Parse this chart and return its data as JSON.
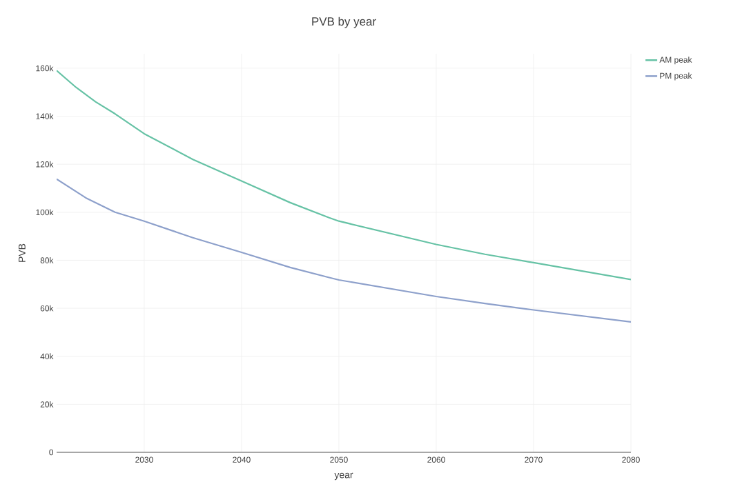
{
  "chart_data": {
    "type": "line",
    "title": "PVB by year",
    "xlabel": "year",
    "ylabel": "PVB",
    "series": [
      {
        "name": "AM peak",
        "color": "#66c2a5",
        "x": [
          2021,
          2023,
          2025,
          2027,
          2030,
          2035,
          2040,
          2045,
          2049,
          2050,
          2060,
          2065,
          2070,
          2080
        ],
        "values": [
          159000,
          152000,
          146000,
          141000,
          132700,
          122000,
          113000,
          104000,
          97700,
          96300,
          86600,
          82500,
          79000,
          72000
        ]
      },
      {
        "name": "PM peak",
        "color": "#8da0cb",
        "x": [
          2021,
          2024,
          2027,
          2030,
          2035,
          2040,
          2045,
          2049,
          2050,
          2060,
          2065,
          2070,
          2080
        ],
        "values": [
          113800,
          106000,
          100000,
          96300,
          89400,
          83300,
          77000,
          72800,
          71800,
          64900,
          62000,
          59300,
          54300
        ]
      }
    ],
    "xlim": [
      2021,
      2080
    ],
    "ylim": [
      0,
      166000
    ],
    "xticks": [
      2030,
      2040,
      2050,
      2060,
      2070,
      2080
    ],
    "yticks": [
      0,
      {
        "value": 20000,
        "label": "20k"
      },
      {
        "value": 40000,
        "label": "40k"
      },
      {
        "value": 60000,
        "label": "60k"
      },
      {
        "value": 80000,
        "label": "80k"
      },
      {
        "value": 100000,
        "label": "100k"
      },
      {
        "value": 120000,
        "label": "120k"
      },
      {
        "value": 140000,
        "label": "140k"
      },
      {
        "value": 160000,
        "label": "160k"
      }
    ],
    "grid": true,
    "legend": "top right",
    "marker": "none",
    "line_style": "solid"
  }
}
